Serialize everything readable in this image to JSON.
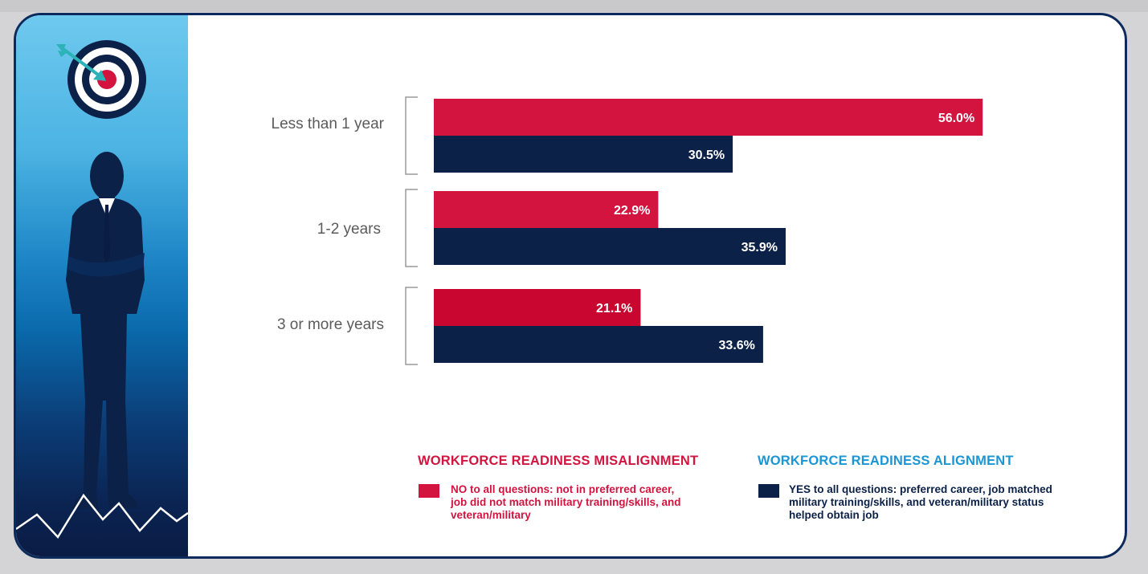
{
  "chart_data": {
    "type": "bar",
    "orientation": "horizontal",
    "categories": [
      "Less than 1 year",
      "1-2 years",
      "3 or more years"
    ],
    "series": [
      {
        "name": "WORKFORCE READINESS  MISALIGNMENT",
        "color": "#d2143f",
        "values": [
          56.0,
          22.9,
          21.1
        ],
        "labels": [
          "56.0%",
          "22.9%",
          "21.1%"
        ]
      },
      {
        "name": "WORKFORCE READINESS ALIGNMENT",
        "color": "#0c2148",
        "values": [
          30.5,
          35.9,
          33.6
        ],
        "labels": [
          "30.5%",
          "35.9%",
          "33.6%"
        ]
      }
    ],
    "xlim": [
      0,
      100
    ],
    "grid": false,
    "legend_position": "bottom"
  },
  "legend": {
    "misalignment": {
      "title": "WORKFORCE READINESS  MISALIGNMENT",
      "color": "#d2143f",
      "description": "NO to all questions: not in preferred career, job did not match military training/skills, and veteran/military"
    },
    "alignment": {
      "title": "WORKFORCE READINESS ALIGNMENT",
      "title_color": "#1a96d4",
      "color": "#0c2148",
      "description": "YES to all questions: preferred career, job matched military training/skills, and veteran/military status helped obtain job"
    }
  },
  "illustration": {
    "icons": [
      "target-icon",
      "arrow-icon",
      "businessman-silhouette",
      "zigzag-line-icon"
    ]
  }
}
